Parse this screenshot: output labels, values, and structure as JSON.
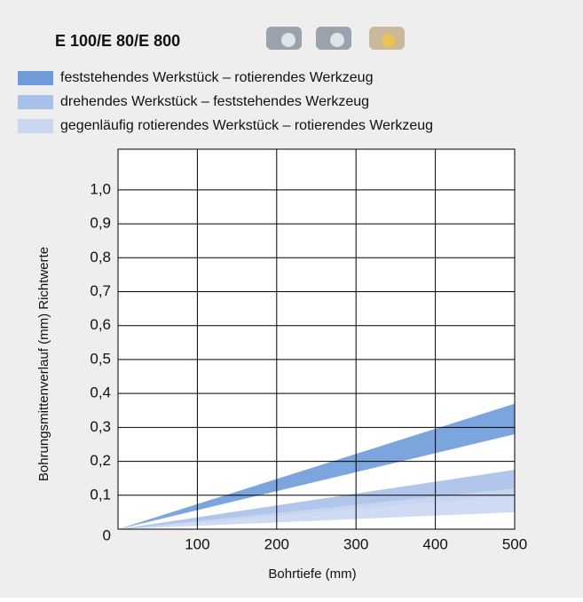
{
  "chart_data": {
    "type": "band",
    "title": "E 100/E 80/E 800",
    "x_label": "Bohrtiefe (mm)",
    "y_label": "Bohrungsmittenverlauf (mm) Richtwerte",
    "x": [
      0,
      500
    ],
    "series": [
      {
        "name": "feststehendes Werkstück – rotierendes Werkzeug",
        "color": "#6f9bd9",
        "low": [
          0,
          0.28
        ],
        "high": [
          0,
          0.37
        ]
      },
      {
        "name": "drehendes Werkstück – feststehendes Werkzeug",
        "color": "#a9c0e8",
        "low": [
          0,
          0.1
        ],
        "high": [
          0,
          0.175
        ]
      },
      {
        "name": "gegenläufig rotierendes Werkstück – rotierendes Werkzeug",
        "color": "#c9d7f1",
        "low": [
          0,
          0.05
        ],
        "high": [
          0,
          0.12
        ]
      }
    ],
    "xlim": [
      0,
      500
    ],
    "xticks": [
      100,
      200,
      300,
      400,
      500
    ],
    "ylim": [
      0,
      1.12
    ],
    "yticks": [
      0,
      {
        "value": 0.1,
        "label": "0,1"
      },
      {
        "value": 0.2,
        "label": "0,2"
      },
      {
        "value": 0.3,
        "label": "0,3"
      },
      {
        "value": 0.4,
        "label": "0,4"
      },
      {
        "value": 0.5,
        "label": "0,5"
      },
      {
        "value": 0.6,
        "label": "0,6"
      },
      {
        "value": 0.7,
        "label": "0,7"
      },
      {
        "value": 0.8,
        "label": "0,8"
      },
      {
        "value": 0.9,
        "label": "0,9"
      },
      {
        "value": 1.0,
        "label": "1,0"
      }
    ],
    "grid": true
  }
}
